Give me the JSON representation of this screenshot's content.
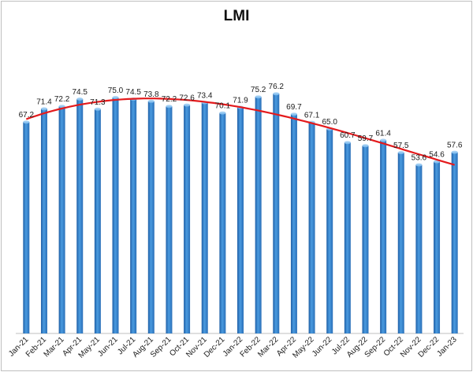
{
  "chart_data": {
    "type": "bar",
    "title": "LMI",
    "xlabel": "",
    "ylabel": "",
    "ylim": [
      0,
      90
    ],
    "grid": false,
    "legend": "none",
    "trendline": {
      "type": "polynomial",
      "color": "#e41a1c"
    },
    "bar_color": "#3d8fd6",
    "categories": [
      "Jan-21",
      "Feb-21",
      "Mar-21",
      "Apr-21",
      "May-21",
      "Jun-21",
      "Jul-21",
      "Aug-21",
      "Sep-21",
      "Oct-21",
      "Nov-21",
      "Dec-21",
      "Jan-22",
      "Feb-22",
      "Mar-22",
      "Apr-22",
      "May-22",
      "Jun-22",
      "Jul-22",
      "Aug-22",
      "Sep-22",
      "Oct-22",
      "Nov-22",
      "Dec-22",
      "Jan-23"
    ],
    "values": [
      67.2,
      71.4,
      72.2,
      74.5,
      71.3,
      75.0,
      74.5,
      73.8,
      72.2,
      72.6,
      73.4,
      70.1,
      71.9,
      75.2,
      76.2,
      69.7,
      67.1,
      65.0,
      60.7,
      59.7,
      61.4,
      57.5,
      53.6,
      54.6,
      57.6
    ],
    "labels": [
      "67.2",
      "71.4",
      "72.2",
      "74.5",
      "71.3",
      "75.0",
      "74.5",
      "73.8",
      "72.2",
      "72.6",
      "73.4",
      "70.1",
      "71.9",
      "75.2",
      "76.2",
      "69.7",
      "67.1",
      "65.0",
      "60.7",
      "59.7",
      "61.4",
      "57.5",
      "53.6",
      "54.6",
      "57.6"
    ]
  }
}
